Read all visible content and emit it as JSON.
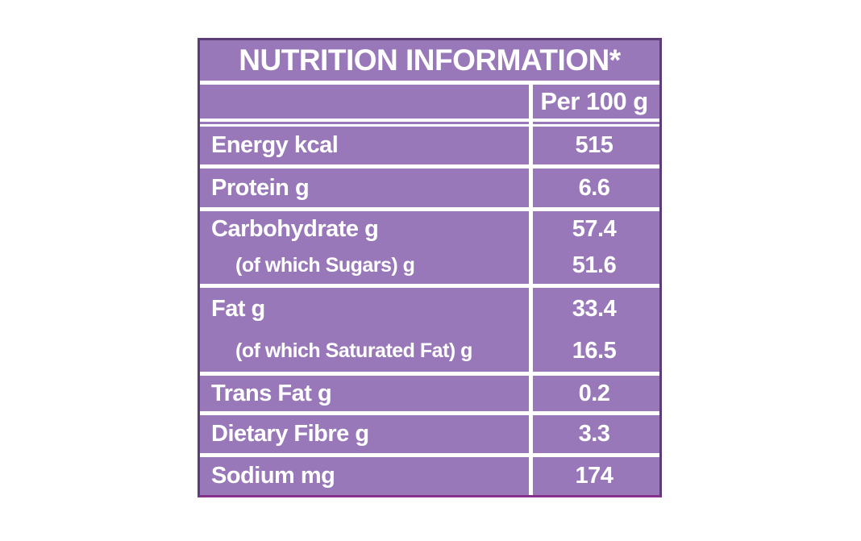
{
  "table": {
    "title": "NUTRITION INFORMATION*",
    "column_header": "Per 100 g",
    "rows": [
      {
        "label": "Energy kcal",
        "value": "515"
      },
      {
        "label": "Protein g",
        "value": "6.6"
      },
      {
        "label": "Carbohydrate g",
        "value": "57.4"
      },
      {
        "label": "(of which Sugars) g",
        "value": "51.6"
      },
      {
        "label": "Fat g",
        "value": "33.4"
      },
      {
        "label": "(of which Saturated Fat) g",
        "value": "16.5"
      },
      {
        "label": "Trans Fat g",
        "value": "0.2"
      },
      {
        "label": "Dietary Fibre g",
        "value": "3.3"
      },
      {
        "label": "Sodium mg",
        "value": "174"
      }
    ],
    "colors": {
      "body_purple": "#9878b8",
      "border_purple": "#5c3d78",
      "border_bottom_magenta": "#84328c",
      "grid_line": "#ffffff",
      "text": "#ffffff"
    }
  }
}
